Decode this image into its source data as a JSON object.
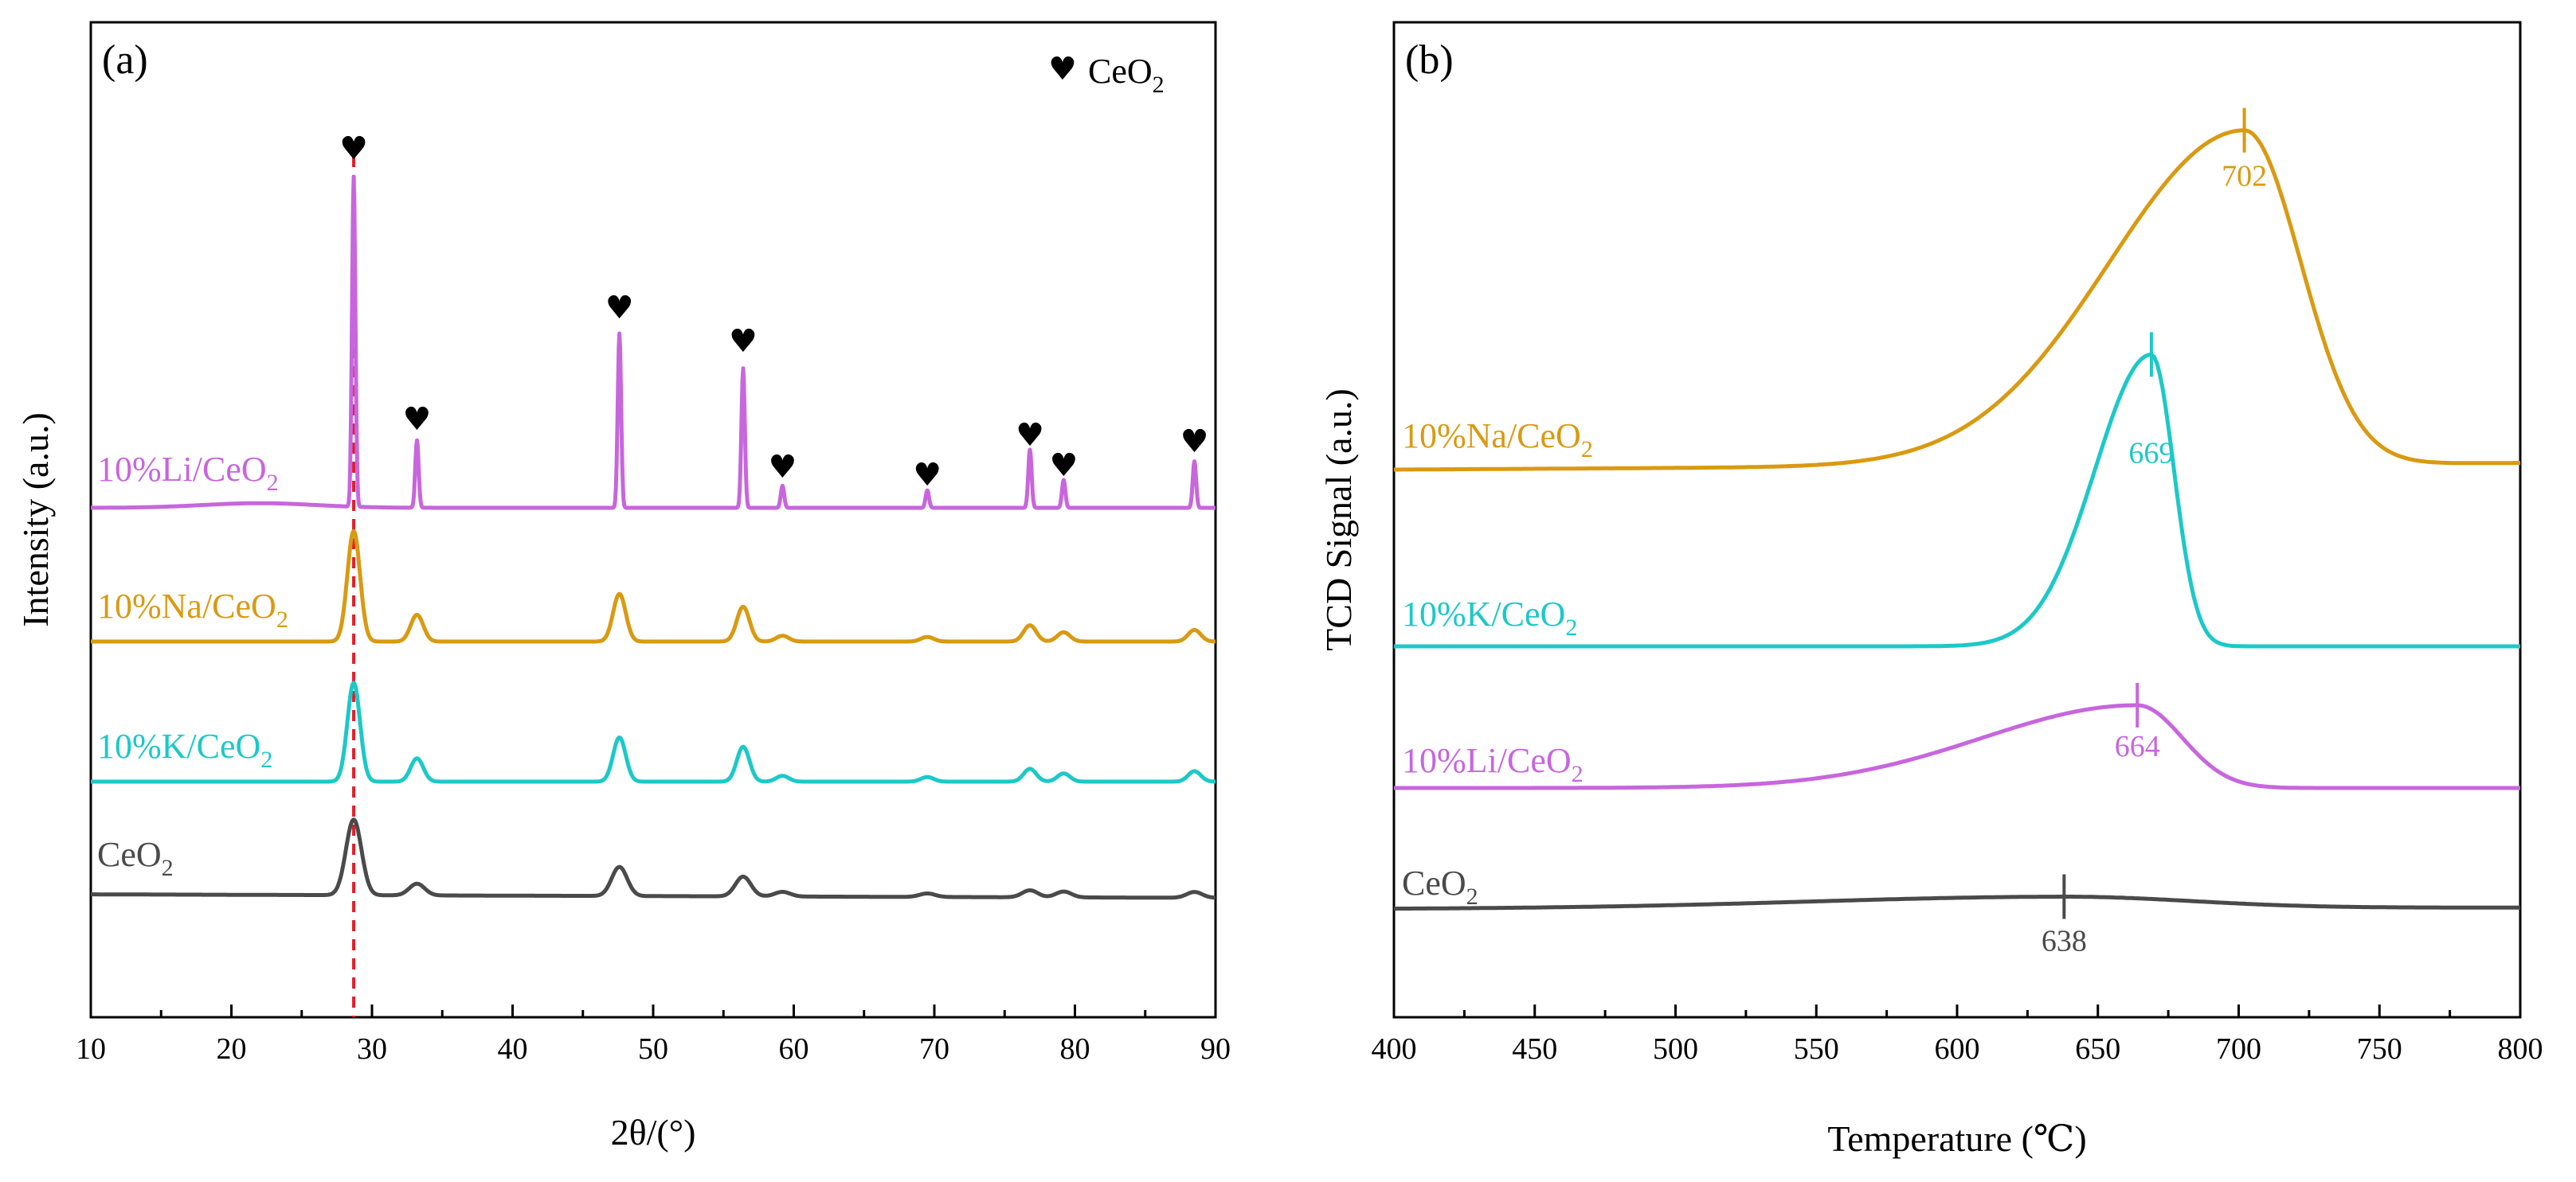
{
  "chart_data": [
    {
      "panel": "(a)",
      "type": "line",
      "xlabel": "2θ/(°)",
      "ylabel": "Intensity (a.u.)",
      "xlim": [
        10,
        90
      ],
      "xticks": [
        10,
        20,
        30,
        40,
        50,
        60,
        70,
        80,
        90
      ],
      "grid": false,
      "legend": {
        "symbol": "♥",
        "label": "CeO",
        "sub": "2",
        "position": "top-right"
      },
      "reference_line": {
        "x": 28.7,
        "style": "dashed",
        "color": "#e0202a"
      },
      "peak_marker_symbol": "♥",
      "peak_markers": [
        28.7,
        33.2,
        47.6,
        56.4,
        59.2,
        69.5,
        76.8,
        79.2,
        88.5
      ],
      "peaks": [
        28.7,
        33.2,
        47.6,
        56.4,
        59.2,
        69.5,
        76.8,
        79.2,
        88.5
      ],
      "series": [
        {
          "name": "10%Li/CeO2",
          "label": "10%Li/CeO",
          "sub": "2",
          "color": "#c766dd",
          "baseline": 0.0,
          "heights": [
            28.4,
            5.8,
            15.0,
            12.0,
            1.9,
            1.5,
            5.0,
            2.4,
            4.0
          ],
          "width": 0.12,
          "hump": {
            "center": 22,
            "width": 4,
            "height": 0.4
          }
        },
        {
          "name": "10%Na/CeO2",
          "label": "10%Na/CeO",
          "sub": "2",
          "color": "#d99a12",
          "baseline": -9.0,
          "heights": [
            9.5,
            2.3,
            4.1,
            3.0,
            0.5,
            0.4,
            1.4,
            0.8,
            1.0
          ],
          "width": 0.45
        },
        {
          "name": "10%K/CeO2",
          "label": "10%K/CeO",
          "sub": "2",
          "color": "#1dc8c8",
          "baseline": -18.0,
          "heights": [
            8.5,
            2.0,
            3.8,
            3.0,
            0.5,
            0.4,
            1.1,
            0.7,
            0.9
          ],
          "width": 0.45
        },
        {
          "name": "CeO2",
          "label": "CeO",
          "sub": "2",
          "color": "#4a4a4a",
          "baseline": -26.0,
          "heights": [
            6.5,
            1.0,
            2.5,
            1.7,
            0.4,
            0.3,
            0.6,
            0.5,
            0.5
          ],
          "width": 0.55
        }
      ]
    },
    {
      "panel": "(b)",
      "type": "line",
      "xlabel": "Temperature (℃)",
      "ylabel": "TCD Signal (a.u.)",
      "xlim": [
        400,
        800
      ],
      "xticks": [
        400,
        450,
        500,
        550,
        600,
        650,
        700,
        750,
        800
      ],
      "grid": false,
      "series": [
        {
          "name": "10%Na/CeO2",
          "label": "10%Na/CeO",
          "sub": "2",
          "color": "#d99a12",
          "baseline": 100,
          "peak_temp": 702,
          "peak_label": "702",
          "peak_height": 100,
          "left_width": 48,
          "right_width": 20
        },
        {
          "name": "10%K/CeO2",
          "label": "10%K/CeO",
          "sub": "2",
          "color": "#1dc8c8",
          "baseline": 48,
          "peak_temp": 669,
          "peak_label": "669",
          "peak_height": 94,
          "left_width": 20,
          "right_width": 8
        },
        {
          "name": "10%Li/CeO2",
          "label": "10%Li/CeO",
          "sub": "2",
          "color": "#c766dd",
          "baseline": 0,
          "peak_temp": 664,
          "peak_label": "664",
          "peak_height": 26,
          "left_width": 55,
          "right_width": 16
        },
        {
          "name": "CeO2",
          "label": "CeO",
          "sub": "2",
          "color": "#4a4a4a",
          "baseline": -42,
          "peak_temp": 638,
          "peak_label": "638",
          "peak_height": 4,
          "left_width": 90,
          "right_width": 45
        }
      ]
    }
  ]
}
